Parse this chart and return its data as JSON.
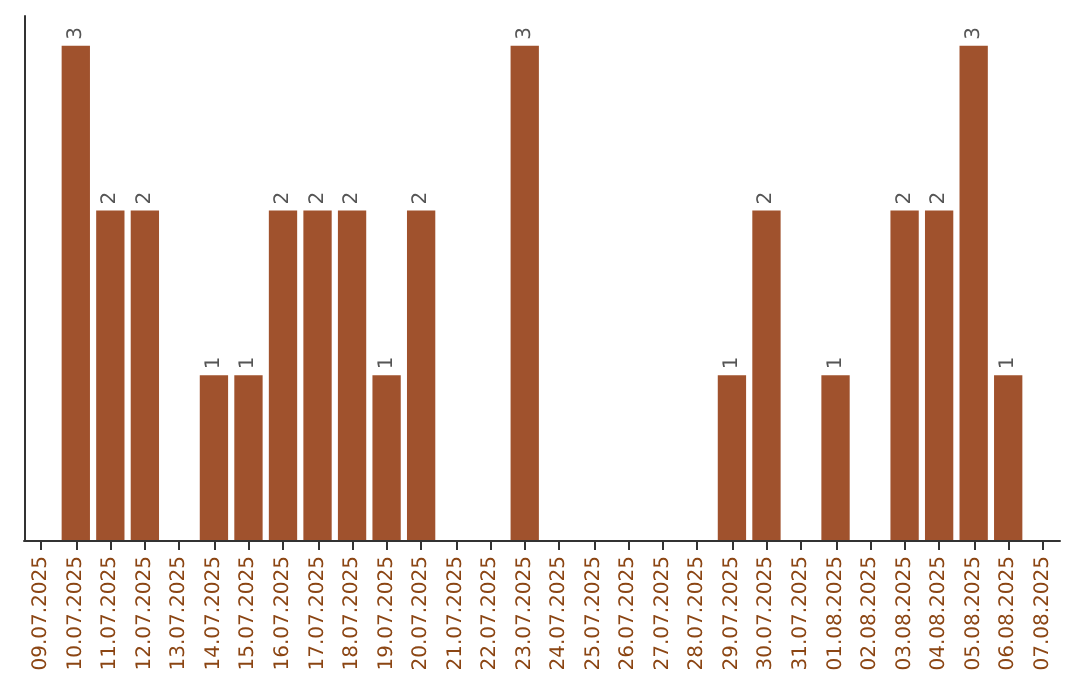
{
  "chart_data": {
    "type": "bar",
    "categories": [
      "09.07.2025",
      "10.07.2025",
      "11.07.2025",
      "12.07.2025",
      "13.07.2025",
      "14.07.2025",
      "15.07.2025",
      "16.07.2025",
      "17.07.2025",
      "18.07.2025",
      "19.07.2025",
      "20.07.2025",
      "21.07.2025",
      "22.07.2025",
      "23.07.2025",
      "24.07.2025",
      "25.07.2025",
      "26.07.2025",
      "27.07.2025",
      "28.07.2025",
      "29.07.2025",
      "30.07.2025",
      "31.07.2025",
      "01.08.2025",
      "02.08.2025",
      "03.08.2025",
      "04.08.2025",
      "05.08.2025",
      "06.08.2025",
      "07.08.2025"
    ],
    "values": [
      null,
      3,
      2,
      2,
      null,
      1,
      1,
      2,
      2,
      2,
      1,
      2,
      null,
      null,
      3,
      null,
      null,
      null,
      null,
      null,
      1,
      2,
      null,
      1,
      null,
      2,
      2,
      3,
      1,
      null
    ],
    "color": "#a0522d",
    "data_labels": true,
    "tick_labels": "x"
  }
}
